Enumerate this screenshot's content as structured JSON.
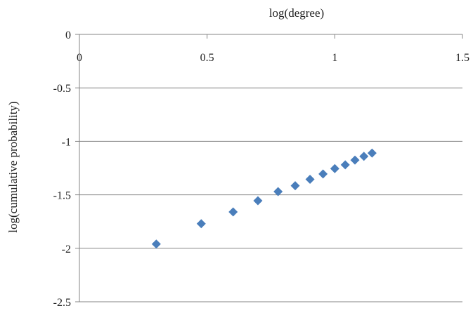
{
  "chart_data": {
    "type": "scatter",
    "xlabel": "log(degree)",
    "ylabel": "log(cumulative probability)",
    "xlim": [
      0,
      1.5
    ],
    "ylim": [
      -2.5,
      0
    ],
    "x_ticks": [
      "0",
      "0.5",
      "1",
      "1.5"
    ],
    "y_ticks": [
      "0",
      "-0.5",
      "-1",
      "-1.5",
      "-2",
      "-2.5"
    ],
    "x_axis_position": "top",
    "grid": "horizontal",
    "legend": "none",
    "marker": "diamond",
    "marker_color": "#4a7ebb",
    "series": [
      {
        "x": [
          0.301,
          0.477,
          0.602,
          0.699,
          0.778,
          0.845,
          0.903,
          0.954,
          1.0,
          1.041,
          1.079,
          1.114,
          1.146
        ],
        "y": [
          -1.96,
          -1.77,
          -1.66,
          -1.555,
          -1.47,
          -1.415,
          -1.355,
          -1.305,
          -1.255,
          -1.22,
          -1.175,
          -1.14,
          -1.11
        ]
      }
    ]
  }
}
